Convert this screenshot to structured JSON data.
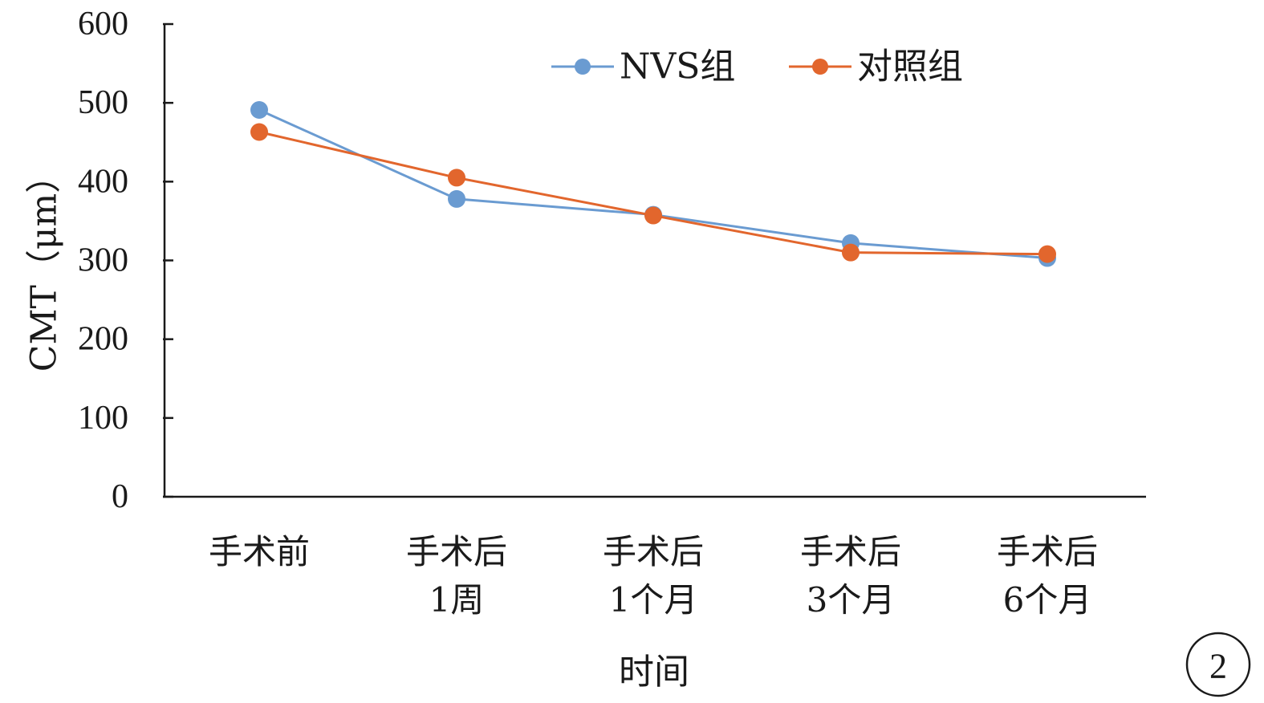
{
  "chart_data": {
    "type": "line",
    "categories": [
      [
        "手术前"
      ],
      [
        "手术后",
        "1周"
      ],
      [
        "手术后",
        "1个月"
      ],
      [
        "手术后",
        "3个月"
      ],
      [
        "手术后",
        "6个月"
      ]
    ],
    "series": [
      {
        "name": "NVS组",
        "values": [
          491,
          378,
          358,
          322,
          303
        ],
        "color": "#6a9bd1"
      },
      {
        "name": "对照组",
        "values": [
          463,
          405,
          357,
          310,
          308
        ],
        "color": "#e2662d"
      }
    ],
    "xlabel": "时间",
    "ylabel": "CMT（μm）",
    "ylim": [
      0,
      600
    ],
    "yticks": [
      0,
      100,
      200,
      300,
      400,
      500,
      600
    ],
    "grid": false,
    "legend_position": "top"
  },
  "panel_label": "2"
}
